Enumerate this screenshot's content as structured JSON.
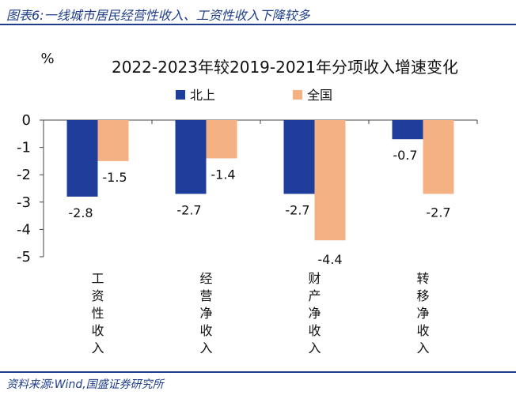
{
  "figure": {
    "title": "图表6:一线城市居民经营性收入、工资性收入下降较多",
    "source": "资料来源:Wind,国盛证券研究所"
  },
  "chart_data": {
    "type": "bar",
    "title": "2022-2023年较2019-2021年分项收入增速变化",
    "ylabel": "%",
    "xlabel": "",
    "ylim": [
      -5,
      0
    ],
    "yticks": [
      0,
      -1,
      -2,
      -3,
      -4,
      -5
    ],
    "grid": false,
    "legend": "top-center",
    "categories": [
      "工资性收入",
      "经营净收入",
      "财产净收入",
      "转移净收入"
    ],
    "series": [
      {
        "name": "北上",
        "color": "#1f3e9c",
        "values": [
          -2.8,
          -2.7,
          -2.7,
          -0.7
        ]
      },
      {
        "name": "全国",
        "color": "#f4b183",
        "values": [
          -1.5,
          -1.4,
          -4.4,
          -2.7
        ]
      }
    ]
  }
}
